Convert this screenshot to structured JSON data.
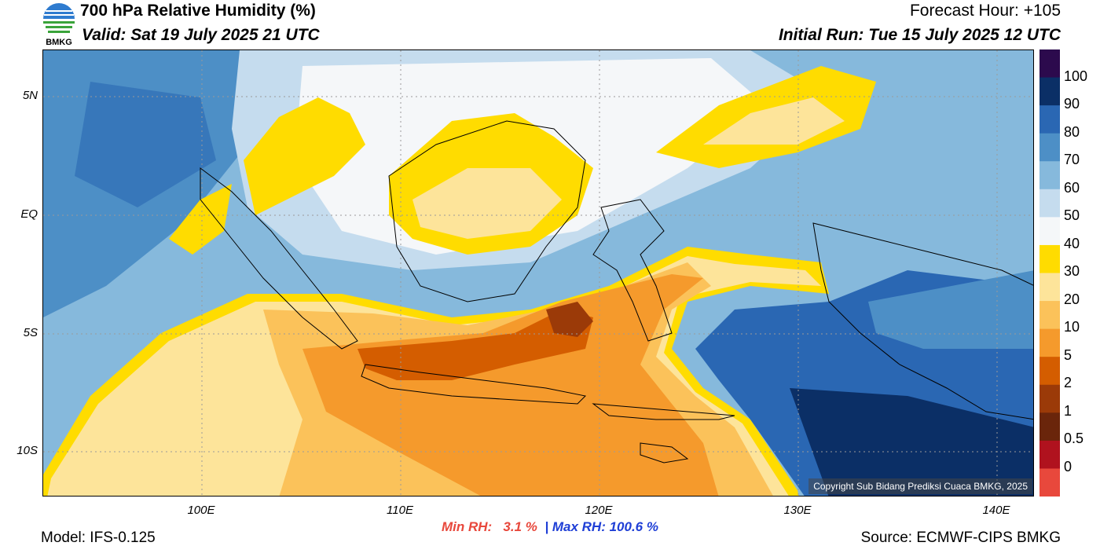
{
  "header": {
    "title": "700 hPa Relative Humidity (%)",
    "valid": "Valid: Sat 19 July 2025 21 UTC",
    "forecast_hour": "Forecast Hour: +105",
    "initial_run": "Initial Run: Tue 15 July 2025 12 UTC",
    "logo_text": "BMKG"
  },
  "axes": {
    "lat_labels": [
      "5N",
      "EQ",
      "5S",
      "10S"
    ],
    "lon_labels": [
      "100E",
      "110E",
      "120E",
      "130E",
      "140E"
    ]
  },
  "colorbar": {
    "labels": [
      "100",
      "90",
      "80",
      "70",
      "60",
      "50",
      "40",
      "30",
      "20",
      "10",
      "5",
      "2",
      "1",
      "0.5",
      "0"
    ],
    "colors": [
      "#2c0a4d",
      "#0b2f66",
      "#2a67b3",
      "#4d8fc6",
      "#86b9dc",
      "#c5dcee",
      "#f5f7f9",
      "#ffdc00",
      "#fde49a",
      "#fbc25a",
      "#f59a2c",
      "#d45d00",
      "#9b3a08",
      "#6a250b",
      "#b0121e",
      "#e8483c"
    ]
  },
  "footer": {
    "copyright": "Copyright Sub Bidang Prediksi Cuaca BMKG, 2025",
    "min_label": "Min RH:",
    "min_value": "3.1 %",
    "separator": "|",
    "max_label": "Max RH:",
    "max_value": "100.6 %",
    "model": "Model: IFS-0.125",
    "source": "Source: ECMWF-CIPS BMKG"
  },
  "colors": {
    "min_text": "#e8483c",
    "max_text": "#1f3fd6"
  }
}
